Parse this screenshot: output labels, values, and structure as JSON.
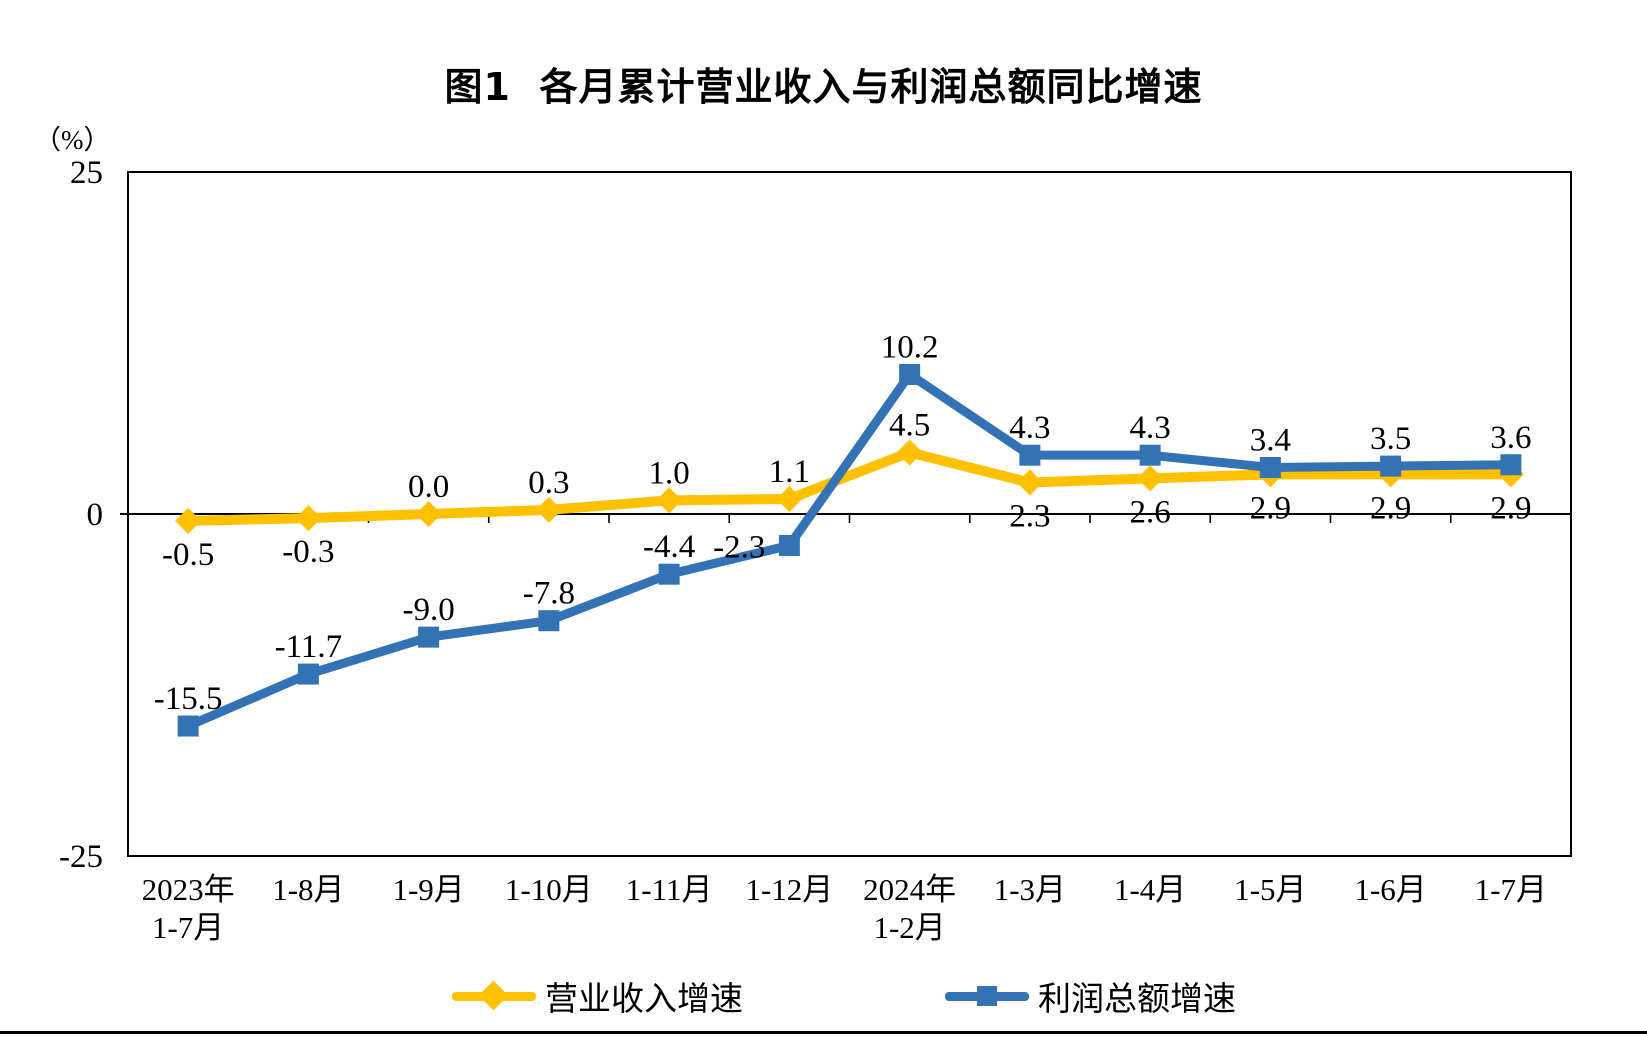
{
  "chart_data": {
    "type": "line",
    "title": "图1  各月累计营业收入与利润总额同比增速",
    "unit_label": "（%）",
    "categories": [
      "2023年1-7月",
      "1-8月",
      "1-9月",
      "1-10月",
      "1-11月",
      "1-12月",
      "2024年1-2月",
      "1-3月",
      "1-4月",
      "1-5月",
      "1-6月",
      "1-7月"
    ],
    "category_labels": [
      [
        "2023年",
        "1-7月"
      ],
      [
        "1-8月"
      ],
      [
        "1-9月"
      ],
      [
        "1-10月"
      ],
      [
        "1-11月"
      ],
      [
        "1-12月"
      ],
      [
        "2024年",
        "1-2月"
      ],
      [
        "1-3月"
      ],
      [
        "1-4月"
      ],
      [
        "1-5月"
      ],
      [
        "1-6月"
      ],
      [
        "1-7月"
      ]
    ],
    "ylim": [
      -25,
      25
    ],
    "y_ticks": [
      25,
      0,
      -25
    ],
    "grid": false,
    "legend_position": "bottom",
    "axis_color": "#000000",
    "series": [
      {
        "name": "营业收入增速",
        "color": "#FFC000",
        "marker": "diamond",
        "values": [
          -0.5,
          -0.3,
          0.0,
          0.3,
          1.0,
          1.1,
          4.5,
          2.3,
          2.6,
          2.9,
          2.9,
          2.9
        ],
        "labels": [
          "-0.5",
          "-0.3",
          "0.0",
          "0.3",
          "1.0",
          "1.1",
          "4.5",
          "2.3",
          "2.6",
          "2.9",
          "2.9",
          "2.9"
        ],
        "label_sides": [
          "below",
          "below",
          "above",
          "above",
          "above",
          "above",
          "above",
          "below",
          "below",
          "below",
          "below",
          "below"
        ]
      },
      {
        "name": "利润总额增速",
        "color": "#3272B5",
        "marker": "square",
        "values": [
          -15.5,
          -11.7,
          -9.0,
          -7.8,
          -4.4,
          -2.3,
          10.2,
          4.3,
          4.3,
          3.4,
          3.5,
          3.6
        ],
        "labels": [
          "-15.5",
          "-11.7",
          "-9.0",
          "-7.8",
          "-4.4",
          "-2.3",
          "10.2",
          "4.3",
          "4.3",
          "3.4",
          "3.5",
          "3.6"
        ],
        "label_sides": [
          "above",
          "above",
          "above",
          "above",
          "above",
          "left",
          "above",
          "above",
          "above",
          "above",
          "above",
          "above"
        ]
      }
    ]
  }
}
